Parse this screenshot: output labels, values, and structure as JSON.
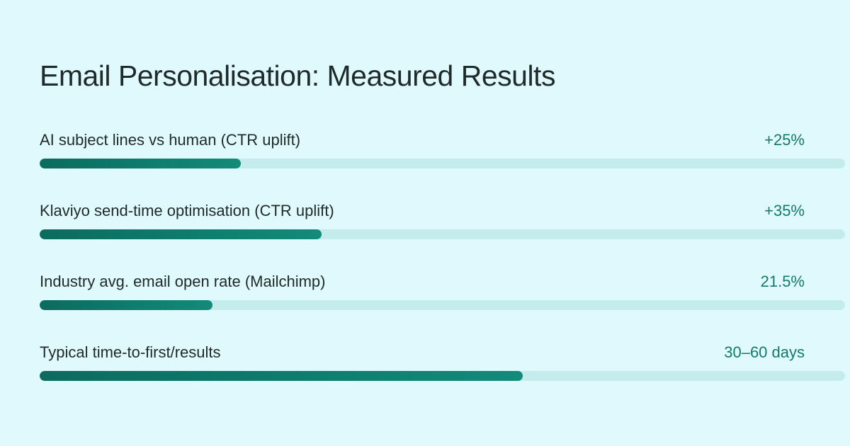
{
  "chart_data": {
    "type": "bar",
    "title": "Email Personalisation: Measured Results",
    "orientation": "horizontal",
    "categories": [
      "AI subject lines vs human (CTR uplift)",
      "Klaviyo send-time optimisation (CTR uplift)",
      "Industry avg. email open rate (Mailchimp)",
      "Typical time-to-first/results"
    ],
    "value_labels": [
      "+25%",
      "+35%",
      "21.5%",
      "30–60 days"
    ],
    "fill_fraction": [
      0.25,
      0.35,
      0.215,
      0.6
    ],
    "colors": {
      "background": "#e0f9fc",
      "track": "#c4ecec",
      "bar": "#0e7d6d",
      "value_text": "#137a6c",
      "text": "#1f2a2a"
    }
  }
}
